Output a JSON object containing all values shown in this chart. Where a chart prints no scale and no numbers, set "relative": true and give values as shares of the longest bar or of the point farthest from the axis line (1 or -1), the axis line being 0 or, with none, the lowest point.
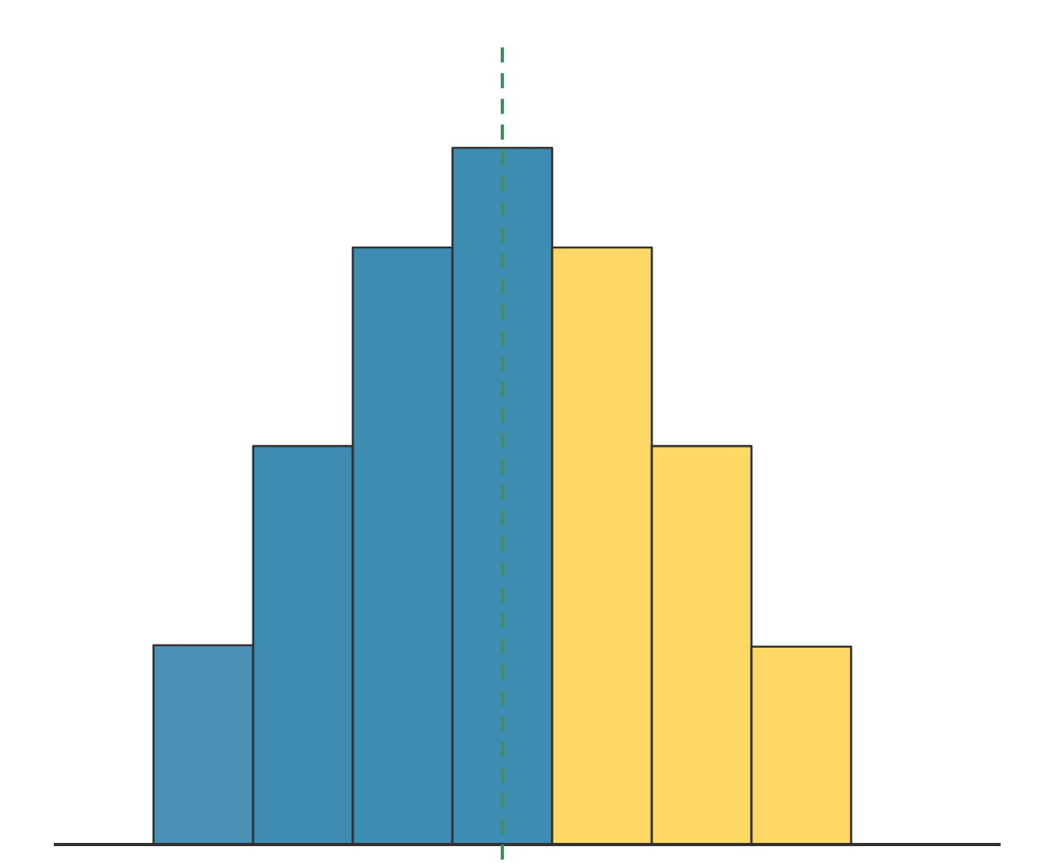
{
  "chart_data": {
    "type": "bar",
    "relative": true,
    "categories": [
      null,
      null,
      null,
      null,
      null,
      null,
      null
    ],
    "values": [
      0.286,
      0.572,
      0.857,
      1,
      0.857,
      0.572,
      0.284
    ],
    "colors": [
      "#4a92b5",
      "#3f8cb3",
      "#3f8cb3",
      "#3f8cb3",
      "#fdd866",
      "#fdd866",
      "#fdd866"
    ]
  }
}
